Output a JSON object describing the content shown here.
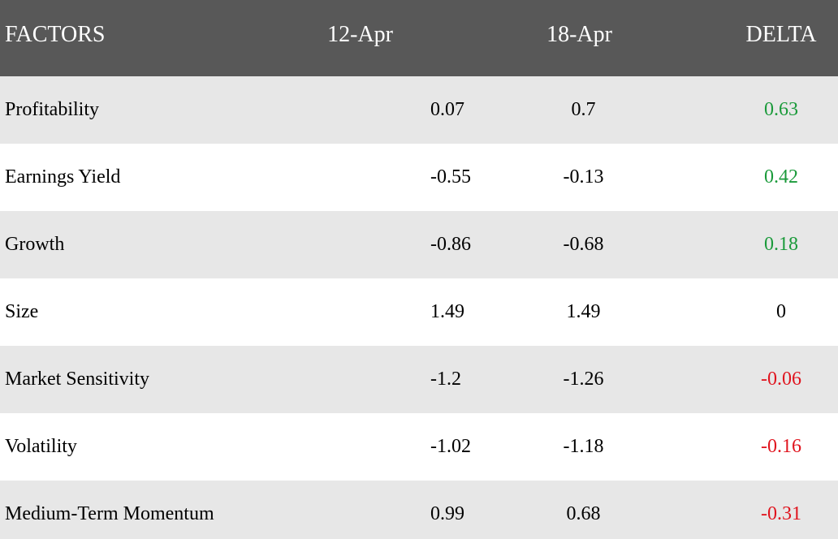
{
  "headers": {
    "factor": "FACTORS",
    "date1": "12-Apr",
    "date2": "18-Apr",
    "delta": "DELTA"
  },
  "rows": [
    {
      "factor": "Profitability",
      "date1": "0.07",
      "date2": "0.7",
      "delta": "0.63",
      "delta_sign": "pos"
    },
    {
      "factor": "Earnings Yield",
      "date1": "-0.55",
      "date2": "-0.13",
      "delta": "0.42",
      "delta_sign": "pos"
    },
    {
      "factor": "Growth",
      "date1": "-0.86",
      "date2": "-0.68",
      "delta": "0.18",
      "delta_sign": "pos"
    },
    {
      "factor": "Size",
      "date1": "1.49",
      "date2": "1.49",
      "delta": "0",
      "delta_sign": "zero"
    },
    {
      "factor": "Market Sensitivity",
      "date1": "-1.2",
      "date2": "-1.26",
      "delta": "-0.06",
      "delta_sign": "neg"
    },
    {
      "factor": "Volatility",
      "date1": "-1.02",
      "date2": "-1.18",
      "delta": "-0.16",
      "delta_sign": "neg"
    },
    {
      "factor": "Medium-Term Momentum",
      "date1": "0.99",
      "date2": "0.68",
      "delta": "-0.31",
      "delta_sign": "neg"
    }
  ],
  "colors": {
    "header_bg": "#585858",
    "header_text": "#ffffff",
    "row_alt_bg": "#e7e7e7",
    "positive": "#1a9a3a",
    "negative": "#e0141e"
  }
}
